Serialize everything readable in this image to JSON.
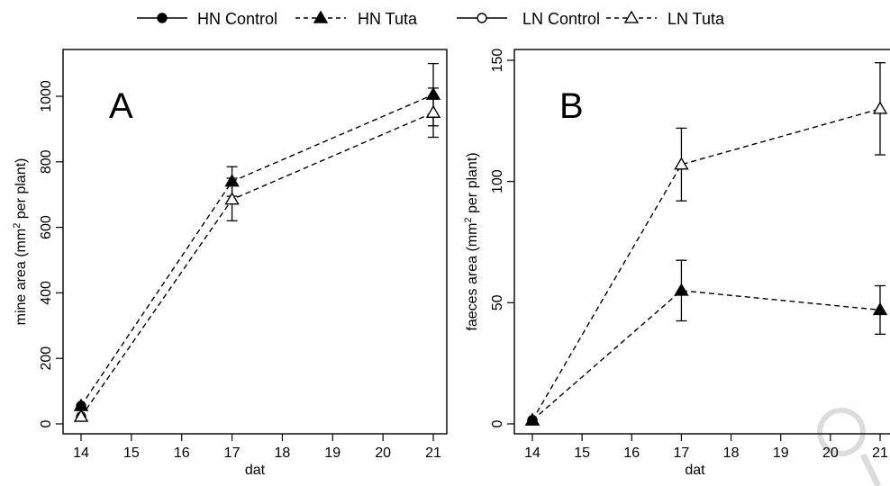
{
  "legend": {
    "items": [
      {
        "label": "HN Control",
        "marker": "filled-circle",
        "line": "solid"
      },
      {
        "label": "HN Tuta",
        "marker": "filled-triangle",
        "line": "dashed"
      },
      {
        "label": "LN Control",
        "marker": "open-circle",
        "line": "solid"
      },
      {
        "label": "LN Tuta",
        "marker": "open-triangle",
        "line": "dashed"
      }
    ]
  },
  "chart_data": [
    {
      "type": "line",
      "panel_label": "A",
      "xlabel": "dat",
      "ylabel_parts": {
        "pre": "mine area (mm",
        "sup": "2",
        "post": " per plant)"
      },
      "xlim": [
        14,
        21
      ],
      "ylim": [
        0,
        1100
      ],
      "x_ticks": [
        14,
        15,
        16,
        17,
        18,
        19,
        20,
        21
      ],
      "y_ticks": [
        0,
        200,
        400,
        600,
        800,
        1000
      ],
      "grid": false,
      "series": [
        {
          "name": "HN Control",
          "marker": "filled-circle",
          "line": "none",
          "points": [
            {
              "x": 14,
              "y": 55
            }
          ]
        },
        {
          "name": "LN Control",
          "marker": "open-circle",
          "line": "none",
          "points": [
            {
              "x": 14,
              "y": 22
            }
          ]
        },
        {
          "name": "HN Tuta",
          "marker": "filled-triangle",
          "line": "dashed",
          "points": [
            {
              "x": 14,
              "y": 55
            },
            {
              "x": 17,
              "y": 740,
              "err": 45
            },
            {
              "x": 21,
              "y": 1005,
              "err": 95
            }
          ]
        },
        {
          "name": "LN Tuta",
          "marker": "open-triangle",
          "line": "dashed",
          "points": [
            {
              "x": 14,
              "y": 22
            },
            {
              "x": 17,
              "y": 685,
              "err": 65
            },
            {
              "x": 21,
              "y": 950,
              "err": 75
            }
          ]
        }
      ]
    },
    {
      "type": "line",
      "panel_label": "B",
      "xlabel": "dat",
      "ylabel_parts": {
        "pre": "faeces area (mm",
        "sup": "2",
        "post": " per plant)"
      },
      "xlim": [
        14,
        21
      ],
      "ylim": [
        0,
        150
      ],
      "x_ticks": [
        14,
        15,
        16,
        17,
        18,
        19,
        20,
        21
      ],
      "y_ticks": [
        0,
        50,
        100,
        150
      ],
      "grid": false,
      "series": [
        {
          "name": "HN Control",
          "marker": "filled-circle",
          "line": "none",
          "points": [
            {
              "x": 14,
              "y": 1.5
            }
          ]
        },
        {
          "name": "LN Control",
          "marker": "open-circle",
          "line": "none",
          "points": [
            {
              "x": 14,
              "y": 1.5
            }
          ]
        },
        {
          "name": "LN Tuta",
          "marker": "open-triangle",
          "line": "dashed",
          "points": [
            {
              "x": 14,
              "y": 1.5
            },
            {
              "x": 17,
              "y": 107,
              "err": 15
            },
            {
              "x": 21,
              "y": 130,
              "err": 19
            }
          ]
        },
        {
          "name": "HN Tuta",
          "marker": "filled-triangle",
          "line": "dashed",
          "points": [
            {
              "x": 14,
              "y": 1.5
            },
            {
              "x": 17,
              "y": 55,
              "err": 12.5
            },
            {
              "x": 21,
              "y": 47,
              "err": 10
            }
          ]
        }
      ]
    }
  ]
}
